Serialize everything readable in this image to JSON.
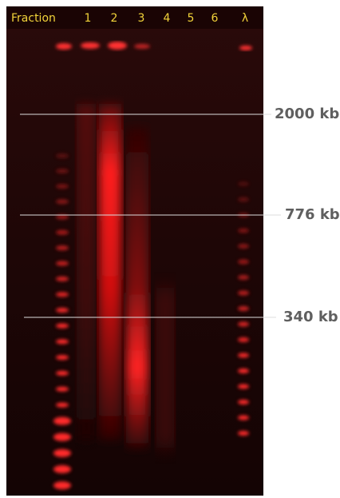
{
  "header": {
    "label": "Fraction",
    "lanes": [
      "1",
      "2",
      "3",
      "4",
      "5",
      "6",
      "λ"
    ]
  },
  "markers": [
    {
      "label": "2000 kb"
    },
    {
      "label": "776 kb"
    },
    {
      "label": "340 kb"
    }
  ]
}
